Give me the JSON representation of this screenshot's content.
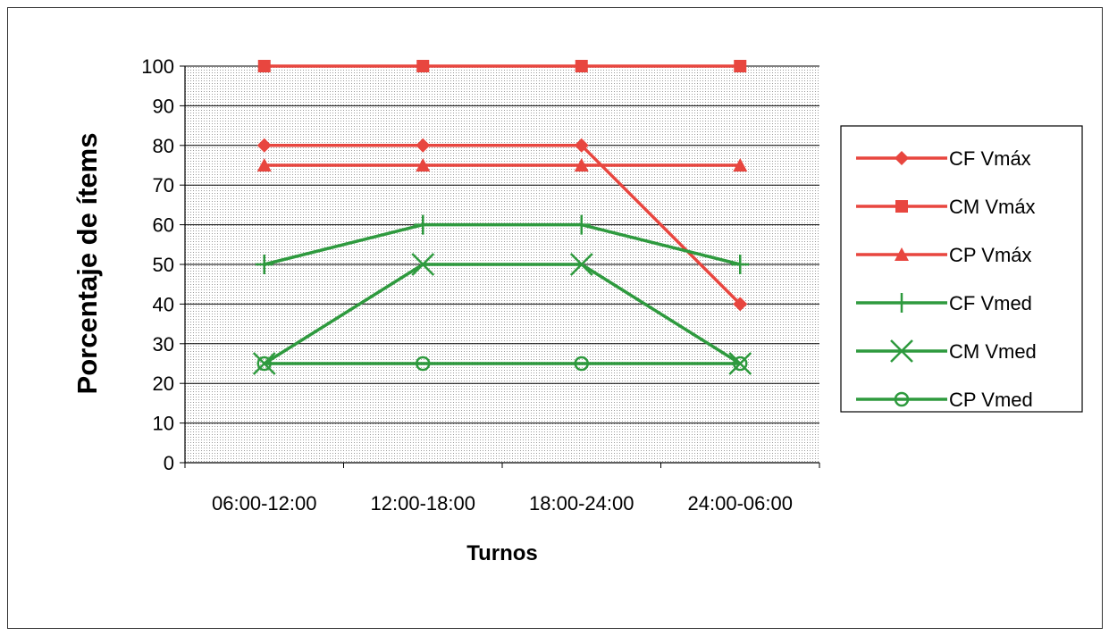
{
  "chart_data": {
    "type": "line",
    "title": "",
    "xlabel": "Turnos",
    "ylabel": "Porcentaje de ítems",
    "categories": [
      "06:00-12:00",
      "12:00-18:00",
      "18:00-24:00",
      "24:00-06:00"
    ],
    "ylim": [
      0,
      100
    ],
    "yticks": [
      0,
      10,
      20,
      30,
      40,
      50,
      60,
      70,
      80,
      90,
      100
    ],
    "grid": true,
    "legend_position": "right",
    "series": [
      {
        "name": "CF Vmáx",
        "values": [
          80,
          80,
          80,
          40
        ],
        "color": "#e8463f",
        "marker": "diamond"
      },
      {
        "name": "CM Vmáx",
        "values": [
          100,
          100,
          100,
          100
        ],
        "color": "#e8463f",
        "marker": "square"
      },
      {
        "name": "CP Vmáx",
        "values": [
          75,
          75,
          75,
          75
        ],
        "color": "#e8463f",
        "marker": "triangle"
      },
      {
        "name": "CF Vmed",
        "values": [
          50,
          60,
          60,
          50
        ],
        "color": "#2e9a3e",
        "marker": "plus"
      },
      {
        "name": "CM Vmed",
        "values": [
          25,
          50,
          50,
          25
        ],
        "color": "#2e9a3e",
        "marker": "x"
      },
      {
        "name": "CP Vmed",
        "values": [
          25,
          25,
          25,
          25
        ],
        "color": "#2e9a3e",
        "marker": "circle"
      }
    ]
  }
}
